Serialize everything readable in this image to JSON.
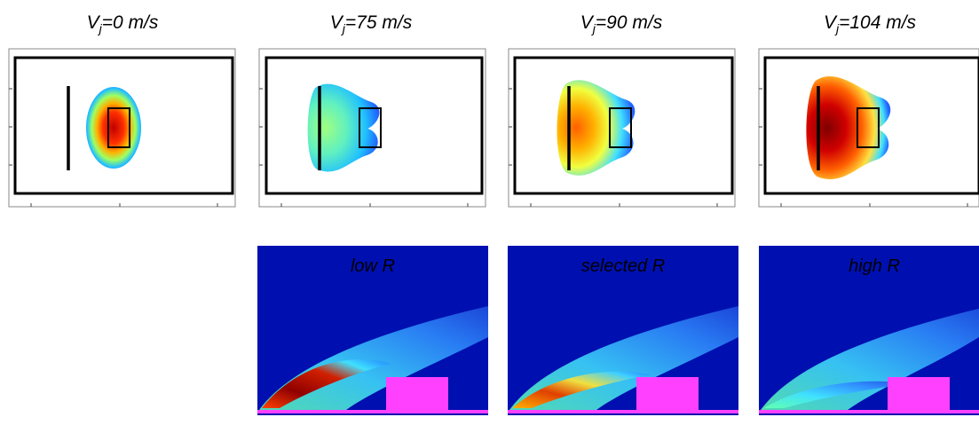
{
  "top_panels": [
    {
      "base": "V",
      "sub": "j",
      "rest": "=0 m/s"
    },
    {
      "base": "V",
      "sub": "j",
      "rest": "=75 m/s"
    },
    {
      "base": "V",
      "sub": "j",
      "rest": "=90 m/s"
    },
    {
      "base": "V",
      "sub": "j",
      "rest": "=104 m/s"
    }
  ],
  "bottom_panels": [
    {
      "label": "low R"
    },
    {
      "label": "selected R"
    },
    {
      "label": "high R"
    }
  ]
}
